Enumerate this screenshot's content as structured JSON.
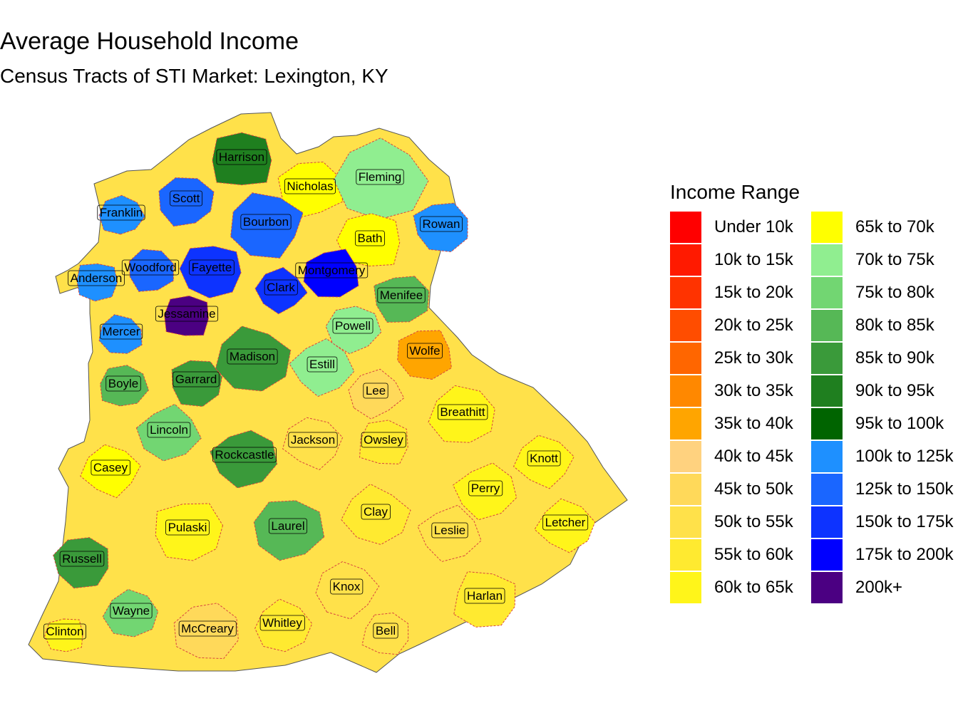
{
  "title": "Average Household Income",
  "subtitle": "Census Tracts of STI Market: Lexington, KY",
  "legend": {
    "title": "Income Range",
    "items": [
      {
        "label": "Under 10k",
        "color": "#FF0000"
      },
      {
        "label": "10k to 15k",
        "color": "#FF1A00"
      },
      {
        "label": "15k to 20k",
        "color": "#FF3300"
      },
      {
        "label": "20k to 25k",
        "color": "#FF4D00"
      },
      {
        "label": "25k to 30k",
        "color": "#FF6600"
      },
      {
        "label": "30k to 35k",
        "color": "#FF8800"
      },
      {
        "label": "35k to 40k",
        "color": "#FFA500"
      },
      {
        "label": "40k to 45k",
        "color": "#FFD27F"
      },
      {
        "label": "45k to 50k",
        "color": "#FFD95A"
      },
      {
        "label": "50k to 55k",
        "color": "#FFE14A"
      },
      {
        "label": "55k to 60k",
        "color": "#FFEA30"
      },
      {
        "label": "60k to 65k",
        "color": "#FFF51A"
      },
      {
        "label": "65k to 70k",
        "color": "#FFFF00"
      },
      {
        "label": "70k to 75k",
        "color": "#90EE90"
      },
      {
        "label": "75k to 80k",
        "color": "#72D672"
      },
      {
        "label": "80k to 85k",
        "color": "#56B856"
      },
      {
        "label": "85k to 90k",
        "color": "#3A9A3A"
      },
      {
        "label": "90k to 95k",
        "color": "#1F7F1F"
      },
      {
        "label": "95k to 100k",
        "color": "#006400"
      },
      {
        "label": "100k to 125k",
        "color": "#1E90FF"
      },
      {
        "label": "125k to 150k",
        "color": "#1A66FF"
      },
      {
        "label": "150k to 175k",
        "color": "#0D33FF"
      },
      {
        "label": "175k to 200k",
        "color": "#0000FF"
      },
      {
        "label": "200k+",
        "color": "#4B0082"
      }
    ]
  },
  "counties": [
    {
      "name": "Harrison",
      "band": 17
    },
    {
      "name": "Nicholas",
      "band": 12
    },
    {
      "name": "Fleming",
      "band": 13
    },
    {
      "name": "Scott",
      "band": 20
    },
    {
      "name": "Franklin",
      "band": 19
    },
    {
      "name": "Bourbon",
      "band": 20
    },
    {
      "name": "Bath",
      "band": 12
    },
    {
      "name": "Rowan",
      "band": 19
    },
    {
      "name": "Anderson",
      "band": 19
    },
    {
      "name": "Woodford",
      "band": 20
    },
    {
      "name": "Fayette",
      "band": 21
    },
    {
      "name": "Montgomery",
      "band": 22
    },
    {
      "name": "Clark",
      "band": 21
    },
    {
      "name": "Menifee",
      "band": 15
    },
    {
      "name": "Jessamine",
      "band": 23
    },
    {
      "name": "Mercer",
      "band": 19
    },
    {
      "name": "Powell",
      "band": 13
    },
    {
      "name": "Madison",
      "band": 16
    },
    {
      "name": "Estill",
      "band": 13
    },
    {
      "name": "Wolfe",
      "band": 6
    },
    {
      "name": "Boyle",
      "band": 15
    },
    {
      "name": "Garrard",
      "band": 16
    },
    {
      "name": "Lee",
      "band": 8
    },
    {
      "name": "Breathitt",
      "band": 11
    },
    {
      "name": "Lincoln",
      "band": 14
    },
    {
      "name": "Jackson",
      "band": 9
    },
    {
      "name": "Owsley",
      "band": 10
    },
    {
      "name": "Casey",
      "band": 12
    },
    {
      "name": "Rockcastle",
      "band": 16
    },
    {
      "name": "Knott",
      "band": 11
    },
    {
      "name": "Perry",
      "band": 11
    },
    {
      "name": "Pulaski",
      "band": 11
    },
    {
      "name": "Laurel",
      "band": 15
    },
    {
      "name": "Clay",
      "band": 10
    },
    {
      "name": "Leslie",
      "band": 9
    },
    {
      "name": "Letcher",
      "band": 11
    },
    {
      "name": "Russell",
      "band": 16
    },
    {
      "name": "Knox",
      "band": 9
    },
    {
      "name": "Harlan",
      "band": 10
    },
    {
      "name": "Wayne",
      "band": 14
    },
    {
      "name": "McCreary",
      "band": 8
    },
    {
      "name": "Whitley",
      "band": 10
    },
    {
      "name": "Bell",
      "band": 9
    },
    {
      "name": "Clinton",
      "band": 11
    }
  ]
}
